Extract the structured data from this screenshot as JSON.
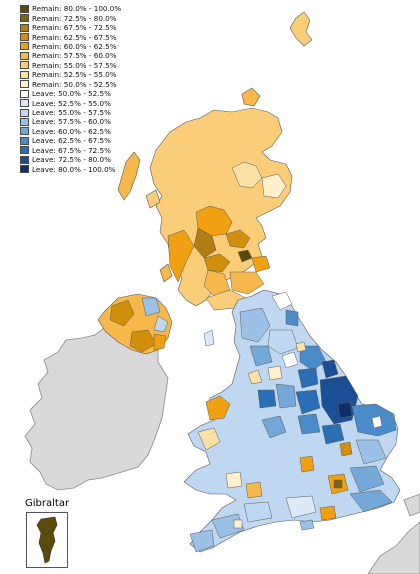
{
  "legend": {
    "items": [
      {
        "label": "Remain: 80.0% - 100.0%",
        "color": "#5c4a0c"
      },
      {
        "label": "Remain: 72.5% - 80.0%",
        "color": "#7c6416"
      },
      {
        "label": "Remain: 67.5% - 72.5%",
        "color": "#b07e12"
      },
      {
        "label": "Remain: 62.5% - 67.5%",
        "color": "#d28f0c"
      },
      {
        "label": "Remain: 60.0% - 62.5%",
        "color": "#f0a010"
      },
      {
        "label": "Remain: 57.5% - 60.0%",
        "color": "#f6b84a"
      },
      {
        "label": "Remain: 55.0% - 57.5%",
        "color": "#fbcd78"
      },
      {
        "label": "Remain: 52.5% - 55.0%",
        "color": "#fde0a6"
      },
      {
        "label": "Remain: 50.0% - 52.5%",
        "color": "#fff0cc"
      },
      {
        "label": "Leave: 50.0% - 52.5%",
        "color": "#ffffff"
      },
      {
        "label": "Leave: 52.5% - 55.0%",
        "color": "#dde9f7"
      },
      {
        "label": "Leave: 55.0% - 57.5%",
        "color": "#bfd7f0"
      },
      {
        "label": "Leave: 57.5% - 60.0%",
        "color": "#9cc1e6"
      },
      {
        "label": "Leave: 60.0% - 62.5%",
        "color": "#74a8d9"
      },
      {
        "label": "Leave: 62.5% - 67.5%",
        "color": "#4a8cca"
      },
      {
        "label": "Leave: 67.5% - 72.5%",
        "color": "#2a6fb6"
      },
      {
        "label": "Leave: 72.5% - 80.0%",
        "color": "#1a4f96"
      },
      {
        "label": "Leave: 80.0% - 100.0%",
        "color": "#0e2f6a"
      }
    ]
  },
  "inset": {
    "title": "Gibraltar",
    "color": "#5c4a0c"
  },
  "colors": {
    "ireland": "#d9d9d9",
    "europe": "#d9d9d9",
    "border": "#5a5a5a",
    "sea": "#ffffff"
  }
}
